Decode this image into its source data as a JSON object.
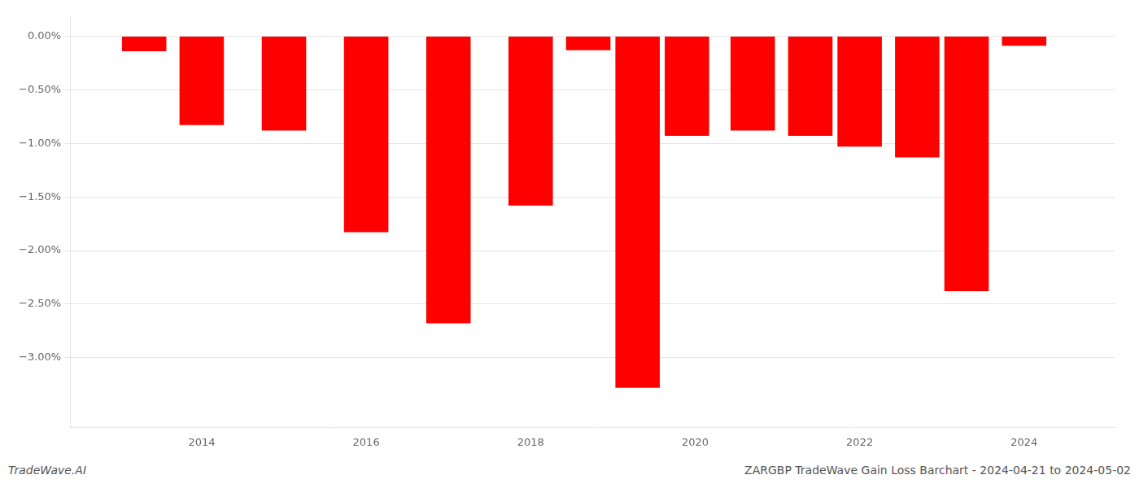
{
  "chart_data": {
    "type": "bar",
    "x": [
      2013.3,
      2014.0,
      2015.0,
      2016.0,
      2017.0,
      2018.0,
      2018.7,
      2019.3,
      2019.9,
      2020.7,
      2021.4,
      2022.0,
      2022.7,
      2023.3,
      2024.0
    ],
    "values": [
      -0.14,
      -0.83,
      -0.88,
      -1.83,
      -2.68,
      -1.58,
      -0.13,
      -3.28,
      -0.93,
      -0.88,
      -0.93,
      -1.03,
      -1.13,
      -2.38,
      -0.09
    ],
    "color": "#ff0000",
    "xlim": [
      2012.4,
      2025.1
    ],
    "xticks": [
      2014,
      2016,
      2018,
      2020,
      2022,
      2024
    ],
    "ylim": [
      -3.65,
      0.18
    ],
    "yticks": [
      {
        "value": 0.0,
        "label": "0.00%"
      },
      {
        "value": -0.5,
        "label": "−0.50%"
      },
      {
        "value": -1.0,
        "label": "−1.00%"
      },
      {
        "value": -1.5,
        "label": "−1.50%"
      },
      {
        "value": -2.0,
        "label": "−2.00%"
      },
      {
        "value": -2.5,
        "label": "−2.50%"
      },
      {
        "value": -3.0,
        "label": "−3.00%"
      }
    ],
    "grid": true,
    "annotations": [
      "TradeWave.AI",
      "ZARGBP TradeWave Gain Loss Barchart - 2024-04-21 to 2024-05-02"
    ]
  }
}
